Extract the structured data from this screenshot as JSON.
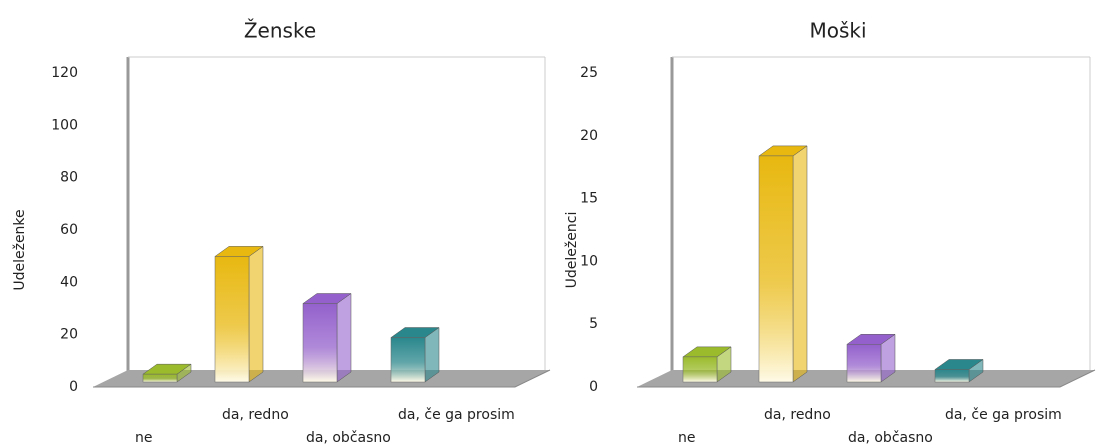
{
  "chart_data": [
    {
      "type": "bar3d",
      "title": "Ženske",
      "ylabel": "Udeleženke",
      "categories": [
        "ne",
        "da, redno",
        "da, občasno",
        "da, če ga prosim"
      ],
      "values": [
        3,
        48,
        30,
        17
      ],
      "colors": [
        "#9bbb2c",
        "#e8b810",
        "#9461cc",
        "#2a878c"
      ],
      "ylim": [
        0,
        120
      ],
      "yticks": [
        0,
        20,
        40,
        60,
        80,
        100,
        120
      ]
    },
    {
      "type": "bar3d",
      "title": "Moški",
      "ylabel": "Udeleženci",
      "categories": [
        "ne",
        "da, redno",
        "da, občasno",
        "da, če ga prosim"
      ],
      "values": [
        2,
        18,
        3,
        1
      ],
      "colors": [
        "#9bbb2c",
        "#e8b810",
        "#9461cc",
        "#2a878c"
      ],
      "ylim": [
        0,
        25
      ],
      "yticks": [
        0,
        5,
        10,
        15,
        20,
        25
      ]
    }
  ]
}
